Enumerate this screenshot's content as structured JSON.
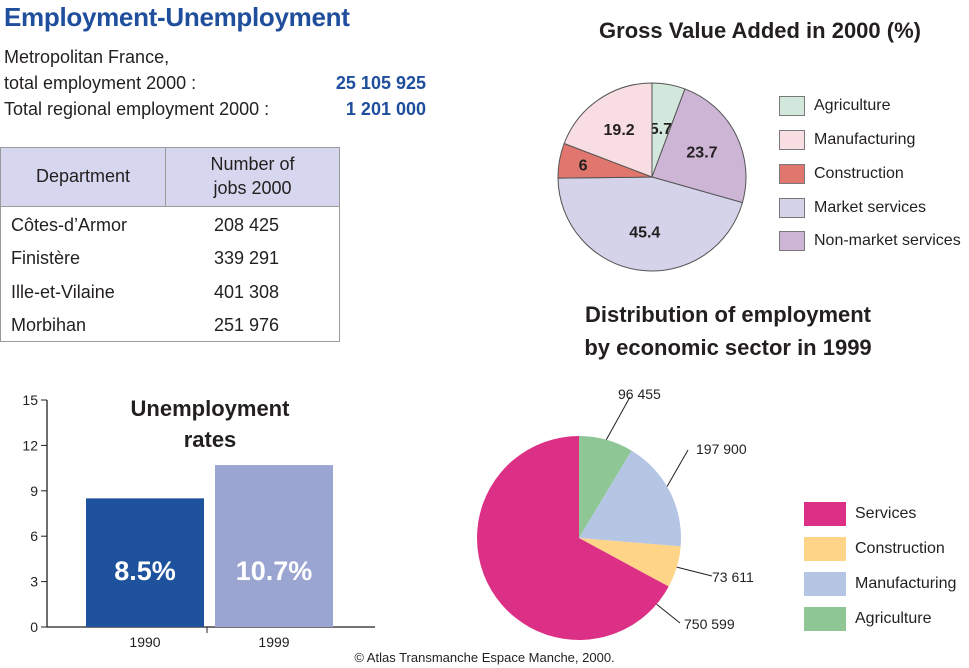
{
  "title": "Employment-Unemployment",
  "summary": {
    "line1": "Metropolitan France,",
    "line2_label": "total employment 2000 :",
    "line2_value": "25 105 925",
    "line3_label": "Total regional employment 2000 :",
    "line3_value": "1 201 000"
  },
  "dept_table": {
    "col1": "Department",
    "col2_line1": "Number of",
    "col2_line2": "jobs 2000",
    "rows": [
      {
        "name": "Côtes-d’Armor",
        "jobs": "208 425"
      },
      {
        "name": "Finistère",
        "jobs": "339 291"
      },
      {
        "name": "Ille-et-Vilaine",
        "jobs": "401 308"
      },
      {
        "name": "Morbihan",
        "jobs": "251 976"
      }
    ]
  },
  "colors": {
    "title_blue": "#1f4e9d",
    "agriculture": "#d3e8dc",
    "manufacturing": "#f8dde3",
    "construction": "#e0766d",
    "market_services": "#d5d3ea",
    "non_market_services": "#cdb5d5",
    "services2": "#dc2f86",
    "construction2": "#fdd488",
    "manufacturing2": "#b5c5e4",
    "agriculture2": "#8ec795",
    "bar1990": "#1f529d",
    "bar1999": "#9aa5d1"
  },
  "chart_data": [
    {
      "type": "pie",
      "title": "Gross Value Added in 2000 (%)",
      "slices": [
        {
          "label": "Agriculture",
          "value": 5.7,
          "display": "5.7",
          "color": "#d3e8dc"
        },
        {
          "label": "Non-market services",
          "value": 23.7,
          "display": "23.7",
          "color": "#cdb5d5"
        },
        {
          "label": "Market services",
          "value": 45.4,
          "display": "45.4",
          "color": "#d5d3ea"
        },
        {
          "label": "Construction",
          "value": 6,
          "display": "6",
          "color": "#e0766d"
        },
        {
          "label": "Manufacturing",
          "value": 19.2,
          "display": "19.2",
          "color": "#f8dde3"
        }
      ],
      "legend": [
        "Agriculture",
        "Manufacturing",
        "Construction",
        "Market services",
        "Non-market services"
      ],
      "legend_position": "right"
    },
    {
      "type": "pie",
      "title_line1": "Distribution of employment",
      "title_line2": "by economic sector in 1999",
      "slices": [
        {
          "label": "Agriculture",
          "value": 96455,
          "display": "96 455",
          "color": "#8ec795"
        },
        {
          "label": "Manufacturing",
          "value": 197900,
          "display": "197 900",
          "color": "#b5c5e4"
        },
        {
          "label": "Construction",
          "value": 73611,
          "display": "73 611",
          "color": "#fdd488"
        },
        {
          "label": "Services",
          "value": 750599,
          "display": "750 599",
          "color": "#dc2f86"
        }
      ],
      "legend": [
        "Services",
        "Construction",
        "Manufacturing",
        "Agriculture"
      ],
      "legend_position": "right"
    },
    {
      "type": "bar",
      "title_line1": "Unemployment",
      "title_line2": "rates",
      "categories": [
        "1990",
        "1999"
      ],
      "values": [
        8.5,
        10.7
      ],
      "value_labels": [
        "8.5%",
        "10.7%"
      ],
      "colors": [
        "#1f529d",
        "#9aa5d1"
      ],
      "ylim": [
        0,
        15
      ],
      "yticks": [
        0,
        3,
        6,
        9,
        12,
        15
      ],
      "grid": false
    }
  ],
  "copyright": "© Atlas Transmanche Espace Manche, 2000."
}
